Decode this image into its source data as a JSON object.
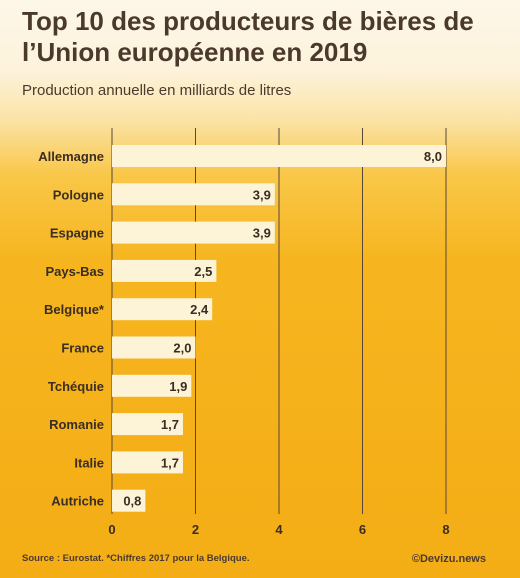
{
  "header": {
    "title": "Top 10 des producteurs de bières de l’Union européenne en 2019",
    "subtitle": "Production annuelle en milliards de litres"
  },
  "footer": {
    "source": "Source : Eurostat. *Chiffres 2017 pour la Belgique.",
    "credit": "©Devizu.news"
  },
  "colors": {
    "bar": "#fdf3d6",
    "text": "#3a2d22",
    "gridline": "#5a4636"
  },
  "chart_data": {
    "type": "bar",
    "orientation": "horizontal",
    "title": "Top 10 des producteurs de bières de l’Union européenne en 2019",
    "subtitle": "Production annuelle en milliards de litres",
    "categories": [
      "Allemagne",
      "Pologne",
      "Espagne",
      "Pays-Bas",
      "Belgique*",
      "France",
      "Tchéquie",
      "Romanie",
      "Italie",
      "Autriche"
    ],
    "values": [
      8.0,
      3.9,
      3.9,
      2.5,
      2.4,
      2.0,
      1.9,
      1.7,
      1.7,
      0.8
    ],
    "value_labels": [
      "8,0",
      "3,9",
      "3,9",
      "2,5",
      "2,4",
      "2,0",
      "1,9",
      "1,7",
      "1,7",
      "0,8"
    ],
    "xlim": [
      0,
      8
    ],
    "ticks": [
      0,
      2,
      4,
      6,
      8
    ],
    "grid": true,
    "legend": "none"
  }
}
